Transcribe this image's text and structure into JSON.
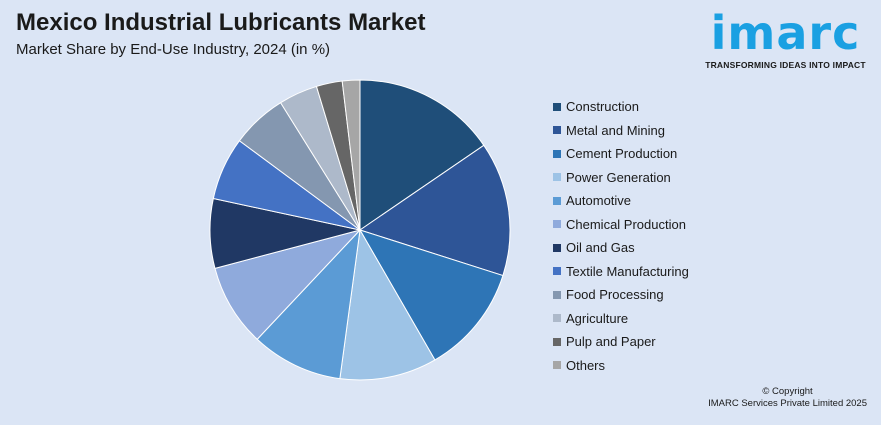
{
  "header": {
    "title": "Mexico Industrial Lubricants Market",
    "subtitle": "Market Share by End-Use Industry, 2024 (in %)"
  },
  "logo": {
    "wordmark": "imarc",
    "tagline": "TRANSFORMING IDEAS INTO IMPACT",
    "color": "#1aa0e2"
  },
  "chart_data": {
    "type": "pie",
    "title": "Mexico Industrial Lubricants Market",
    "subtitle": "Market Share by End-Use Industry, 2024 (in %)",
    "legend_position": "right",
    "start_angle_deg": 0,
    "direction": "clockwise",
    "slices": [
      {
        "label": "Construction",
        "value": 15.5,
        "color": "#1f4e79"
      },
      {
        "label": "Metal and Mining",
        "value": 14.5,
        "color": "#2e5597"
      },
      {
        "label": "Cement Production",
        "value": 11.8,
        "color": "#2e75b6"
      },
      {
        "label": "Power Generation",
        "value": 10.5,
        "color": "#9dc3e6"
      },
      {
        "label": "Automotive",
        "value": 9.9,
        "color": "#5b9bd5"
      },
      {
        "label": "Chemical Production",
        "value": 8.9,
        "color": "#8faadc"
      },
      {
        "label": "Oil and Gas",
        "value": 7.5,
        "color": "#203864"
      },
      {
        "label": "Textile Manufacturing",
        "value": 6.8,
        "color": "#4472c4"
      },
      {
        "label": "Food Processing",
        "value": 6.0,
        "color": "#8497b0"
      },
      {
        "label": "Agriculture",
        "value": 4.2,
        "color": "#adb9ca"
      },
      {
        "label": "Pulp and Paper",
        "value": 2.8,
        "color": "#666666"
      },
      {
        "label": "Others",
        "value": 1.9,
        "color": "#a6a6a6"
      }
    ]
  },
  "footer": {
    "copyright_line1": "© Copyright",
    "copyright_line2": "IMARC Services Private Limited 2025"
  }
}
